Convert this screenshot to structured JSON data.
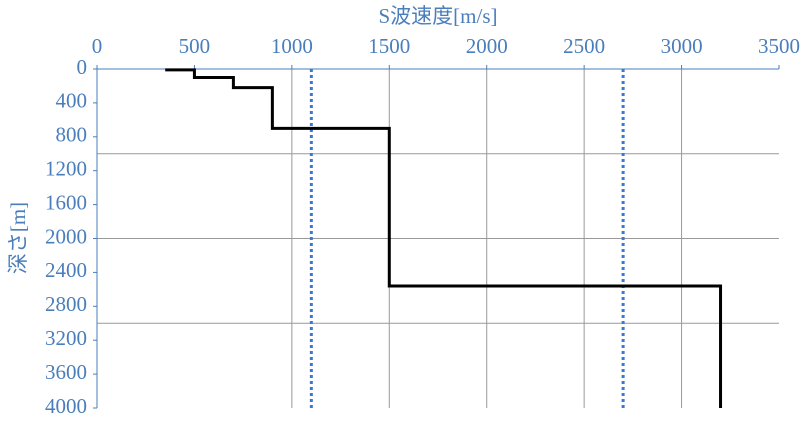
{
  "chart_data": {
    "type": "line",
    "x_label": "S波速度[m/s]",
    "y_label": "深さ[m]",
    "xlim": [
      0,
      3500
    ],
    "xticks": [
      0,
      500,
      1000,
      1500,
      2000,
      2500,
      3000,
      3500
    ],
    "ylim": [
      0,
      4000
    ],
    "yticks": [
      0,
      400,
      800,
      1200,
      1600,
      2000,
      2400,
      2800,
      3200,
      3600,
      4000
    ],
    "y_inverted": true,
    "x_axis_position": "top",
    "xgrid": [
      1000,
      1500,
      2000,
      2500,
      3000
    ],
    "ygrid": [
      1000,
      2000,
      3000
    ],
    "series": [
      {
        "color": "#000000",
        "x": [
          350,
          500,
          500,
          700,
          700,
          900,
          900,
          1500,
          1500,
          3200,
          3200
        ],
        "values": [
          10,
          10,
          100,
          100,
          220,
          220,
          700,
          700,
          2560,
          2560,
          4000
        ]
      }
    ],
    "reference_lines": {
      "color": "#3a78d8",
      "x": [
        1100,
        2700
      ]
    }
  }
}
